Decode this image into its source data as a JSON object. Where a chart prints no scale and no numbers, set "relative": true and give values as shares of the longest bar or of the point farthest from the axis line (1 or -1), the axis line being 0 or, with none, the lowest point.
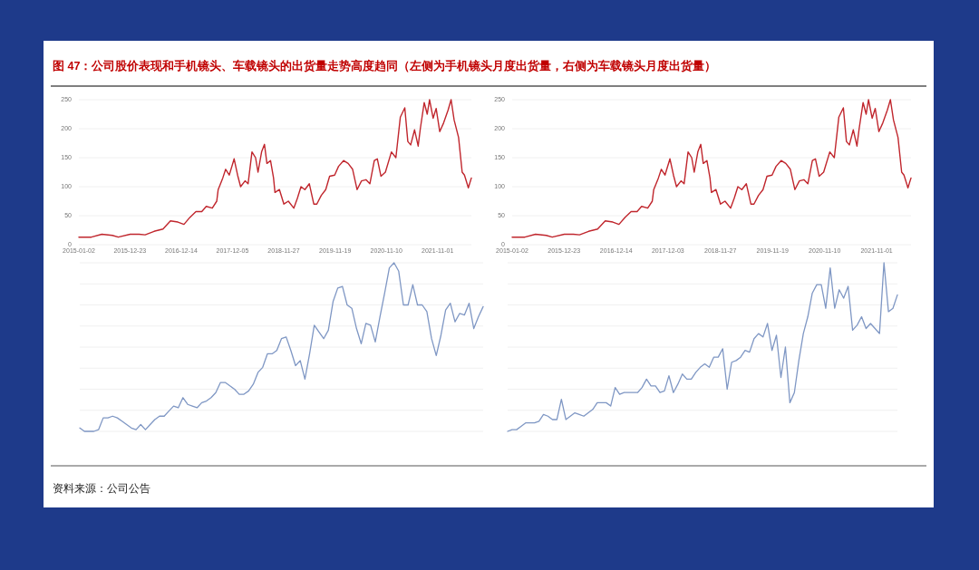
{
  "chart_data": [
    {
      "type": "line",
      "title": "图 47：公司股价表现和手机镜头、车载镜头的出货量走势高度趋同（左侧为手机镜头月度出货量，右侧为车载镜头月度出货量）",
      "annotations": [
        "资料来源：公司公告"
      ],
      "x": [
        "2015-01-02",
        "2015-03-30",
        "2015-06-11",
        "2015-08-23",
        "2015-10-03",
        "2015-12-25",
        "2016-02-25",
        "2016-04-07",
        "2016-06-08",
        "2016-08-09",
        "2016-09-30",
        "2016-11-21",
        "2017-01-02",
        "2017-02-12",
        "2017-03-26",
        "2017-05-06",
        "2017-06-06",
        "2017-07-18",
        "2017-08-18",
        "2017-08-28",
        "2017-09-29",
        "2017-10-19",
        "2017-11-13",
        "2017-12-17",
        "2018-01-10",
        "2018-01-31",
        "2018-03-03",
        "2018-03-24",
        "2018-04-20",
        "2018-05-15",
        "2018-06-01",
        "2018-06-26",
        "2018-07-16",
        "2018-08-02",
        "2018-08-27",
        "2018-09-17",
        "2018-09-27",
        "2018-10-28",
        "2018-11-28",
        "2018-12-29",
        "2019-02-05",
        "2019-03-02",
        "2019-03-27",
        "2019-04-23",
        "2019-05-24",
        "2019-06-24",
        "2019-07-15",
        "2019-08-15",
        "2019-09-15",
        "2019-10-12",
        "2019-11-16",
        "2019-12-13",
        "2020-01-17",
        "2020-02-18",
        "2020-03-20",
        "2020-04-20",
        "2020-05-21",
        "2020-06-21",
        "2020-07-18",
        "2020-08-18",
        "2020-09-08",
        "2020-10-03",
        "2020-11-03",
        "2020-12-15",
        "2021-01-15",
        "2021-02-15",
        "2021-03-18",
        "2021-04-08",
        "2021-04-28",
        "2021-05-25",
        "2021-06-19",
        "2021-07-04",
        "2021-07-31",
        "2021-08-21",
        "2021-09-06",
        "2021-10-01",
        "2021-10-22",
        "2021-11-16",
        "2021-12-13",
        "2022-01-13",
        "2022-02-03",
        "2022-02-24",
        "2022-03-27",
        "2022-04-21",
        "2022-05-07",
        "2022-06-03",
        "2022-06-24"
      ],
      "series": [
        {
          "color": "#c0262d",
          "values": [
            13,
            13,
            18,
            16,
            13,
            18,
            18,
            17,
            23,
            27,
            41,
            39,
            35,
            47,
            57,
            57,
            66,
            63,
            75,
            95,
            115,
            130,
            120,
            148,
            120,
            100,
            110,
            105,
            160,
            150,
            125,
            160,
            173,
            140,
            145,
            115,
            90,
            95,
            70,
            75,
            63,
            80,
            100,
            95,
            105,
            70,
            70,
            85,
            95,
            118,
            120,
            135,
            145,
            140,
            130,
            95,
            110,
            112,
            105,
            145,
            148,
            118,
            125,
            160,
            150,
            220,
            236,
            178,
            172,
            198,
            170,
            200,
            245,
            225,
            250,
            218,
            235,
            195,
            210,
            232,
            250,
            215,
            185,
            125,
            120,
            98,
            115
          ]
        }
      ],
      "xlim": [
        "2015-01-02",
        "2022-06-24"
      ],
      "xticks": [
        "2015-01-02",
        "2015-12-23",
        "2016-12-14",
        "2017-12-05",
        "2018-11-27",
        "2019-11-19",
        "2020-11-10",
        "2021-11-01"
      ],
      "ylim": [
        0,
        250
      ],
      "yticks": [
        0,
        50,
        100,
        150,
        200,
        250
      ],
      "grid": "y"
    },
    {
      "type": "line",
      "x": [
        "2015-01-02",
        "2015-03-30",
        "2015-06-11",
        "2015-08-23",
        "2015-10-03",
        "2015-12-25",
        "2016-02-25",
        "2016-04-07",
        "2016-06-08",
        "2016-08-09",
        "2016-09-30",
        "2016-11-21",
        "2017-01-02",
        "2017-02-12",
        "2017-03-26",
        "2017-05-06",
        "2017-06-06",
        "2017-07-18",
        "2017-08-18",
        "2017-08-28",
        "2017-09-29",
        "2017-10-19",
        "2017-11-13",
        "2017-12-17",
        "2018-01-10",
        "2018-01-31",
        "2018-03-03",
        "2018-03-24",
        "2018-04-20",
        "2018-05-15",
        "2018-06-01",
        "2018-06-26",
        "2018-07-16",
        "2018-08-02",
        "2018-08-27",
        "2018-09-17",
        "2018-09-27",
        "2018-10-28",
        "2018-11-28",
        "2018-12-29",
        "2019-02-05",
        "2019-03-02",
        "2019-03-27",
        "2019-04-23",
        "2019-05-24",
        "2019-06-24",
        "2019-07-15",
        "2019-08-15",
        "2019-09-15",
        "2019-10-12",
        "2019-11-16",
        "2019-12-13",
        "2020-01-17",
        "2020-02-18",
        "2020-03-20",
        "2020-04-20",
        "2020-05-21",
        "2020-06-21",
        "2020-07-18",
        "2020-08-18",
        "2020-09-08",
        "2020-10-03",
        "2020-11-03",
        "2020-12-15",
        "2021-01-15",
        "2021-02-15",
        "2021-03-18",
        "2021-04-08",
        "2021-04-28",
        "2021-05-25",
        "2021-06-19",
        "2021-07-04",
        "2021-07-31",
        "2021-08-21",
        "2021-09-06",
        "2021-10-01",
        "2021-10-22",
        "2021-11-16",
        "2021-12-13",
        "2022-01-13",
        "2022-02-03",
        "2022-02-24",
        "2022-03-27",
        "2022-04-21",
        "2022-05-07",
        "2022-06-03",
        "2022-06-24"
      ],
      "series": [
        {
          "color": "#c0262d",
          "values": [
            13,
            13,
            18,
            16,
            13,
            18,
            18,
            17,
            23,
            27,
            41,
            39,
            35,
            47,
            57,
            57,
            66,
            63,
            75,
            95,
            115,
            130,
            120,
            148,
            120,
            100,
            110,
            105,
            160,
            150,
            125,
            160,
            173,
            140,
            145,
            115,
            90,
            95,
            70,
            75,
            63,
            80,
            100,
            95,
            105,
            70,
            70,
            85,
            95,
            118,
            120,
            135,
            145,
            140,
            130,
            95,
            110,
            112,
            105,
            145,
            148,
            118,
            125,
            160,
            150,
            220,
            236,
            178,
            172,
            198,
            170,
            200,
            245,
            225,
            250,
            218,
            235,
            195,
            210,
            232,
            250,
            215,
            185,
            125,
            120,
            98,
            115
          ]
        }
      ],
      "xlim": [
        "2015-01-02",
        "2022-06-24"
      ],
      "xticks": [
        "2015-01-02",
        "2015-12-23",
        "2016-12-14",
        "2017-12-03",
        "2018-11-27",
        "2019-11-19",
        "2020-11-10",
        "2021-11-01"
      ],
      "ylim": [
        0,
        250
      ],
      "yticks": [
        0,
        50,
        100,
        150,
        200,
        250
      ],
      "grid": "y"
    },
    {
      "type": "line",
      "relative": true,
      "grid": "y",
      "categories": [
        null,
        null,
        null,
        null,
        null,
        null,
        null,
        null,
        null,
        null,
        null,
        null,
        null,
        null,
        null,
        null,
        null,
        null,
        null,
        null,
        null,
        null,
        null,
        null,
        null,
        null,
        null,
        null,
        null,
        null,
        null,
        null,
        null,
        null,
        null,
        null,
        null,
        null,
        null,
        null,
        null,
        null,
        null,
        null,
        null,
        null,
        null,
        null,
        null,
        null,
        null,
        null,
        null,
        null,
        null,
        null,
        null,
        null,
        null,
        null,
        null,
        null,
        null,
        null,
        null,
        null,
        null,
        null,
        null,
        null,
        null,
        null,
        null,
        null,
        null,
        null,
        null,
        null,
        null,
        null,
        null,
        null,
        null,
        null,
        null,
        null,
        null
      ],
      "series": [
        {
          "color": "#7f97c4",
          "values": [
            0.02,
            0.0,
            0,
            0,
            0.01,
            0.08,
            0.08,
            0.09,
            0.08,
            0.06,
            0.04,
            0.02,
            0.01,
            0.04,
            0.01,
            0.04,
            0.07,
            0.09,
            0.09,
            0.12,
            0.15,
            0.14,
            0.2,
            0.16,
            0.15,
            0.14,
            0.17,
            0.18,
            0.2,
            0.23,
            0.29,
            0.29,
            0.27,
            0.25,
            0.22,
            0.22,
            0.24,
            0.28,
            0.35,
            0.38,
            0.46,
            0.46,
            0.48,
            0.55,
            0.56,
            0.48,
            0.39,
            0.42,
            0.31,
            0.46,
            0.63,
            0.59,
            0.55,
            0.6,
            0.77,
            0.85,
            0.86,
            0.75,
            0.73,
            0.61,
            0.52,
            0.64,
            0.63,
            0.53,
            0.68,
            0.82,
            0.97,
            1,
            0.95,
            0.75,
            0.75,
            0.87,
            0.75,
            0.75,
            0.71,
            0.55,
            0.45,
            0.57,
            0.72,
            0.76,
            0.65,
            0.7,
            0.69,
            0.76,
            0.61,
            0.68,
            0.74
          ]
        }
      ]
    },
    {
      "type": "line",
      "relative": true,
      "grid": "y",
      "categories": [
        null,
        null,
        null,
        null,
        null,
        null,
        null,
        null,
        null,
        null,
        null,
        null,
        null,
        null,
        null,
        null,
        null,
        null,
        null,
        null,
        null,
        null,
        null,
        null,
        null,
        null,
        null,
        null,
        null,
        null,
        null,
        null,
        null,
        null,
        null,
        null,
        null,
        null,
        null,
        null,
        null,
        null,
        null,
        null,
        null,
        null,
        null,
        null,
        null,
        null,
        null,
        null,
        null,
        null,
        null,
        null,
        null,
        null,
        null,
        null,
        null,
        null,
        null,
        null,
        null,
        null,
        null,
        null,
        null,
        null,
        null,
        null,
        null,
        null,
        null,
        null,
        null,
        null,
        null,
        null,
        null,
        null,
        null,
        null,
        null,
        null,
        null,
        null
      ],
      "series": [
        {
          "color": "#7f97c4",
          "values": [
            0,
            0.01,
            0.01,
            0.03,
            0.05,
            0.05,
            0.05,
            0.06,
            0.1,
            0.09,
            0.07,
            0.07,
            0.19,
            0.07,
            0.09,
            0.11,
            0.1,
            0.09,
            0.11,
            0.13,
            0.17,
            0.17,
            0.17,
            0.15,
            0.26,
            0.22,
            0.23,
            0.23,
            0.23,
            0.23,
            0.26,
            0.31,
            0.27,
            0.27,
            0.23,
            0.24,
            0.33,
            0.23,
            0.28,
            0.34,
            0.31,
            0.31,
            0.35,
            0.38,
            0.4,
            0.38,
            0.44,
            0.44,
            0.49,
            0.25,
            0.41,
            0.42,
            0.44,
            0.48,
            0.47,
            0.55,
            0.58,
            0.56,
            0.64,
            0.48,
            0.57,
            0.32,
            0.5,
            0.17,
            0.23,
            0.42,
            0.58,
            0.68,
            0.82,
            0.87,
            0.87,
            0.73,
            0.97,
            0.73,
            0.84,
            0.79,
            0.86,
            0.6,
            0.63,
            0.68,
            0.61,
            0.64,
            0.61,
            0.58,
            1,
            0.71,
            0.73,
            0.81
          ]
        }
      ]
    }
  ]
}
